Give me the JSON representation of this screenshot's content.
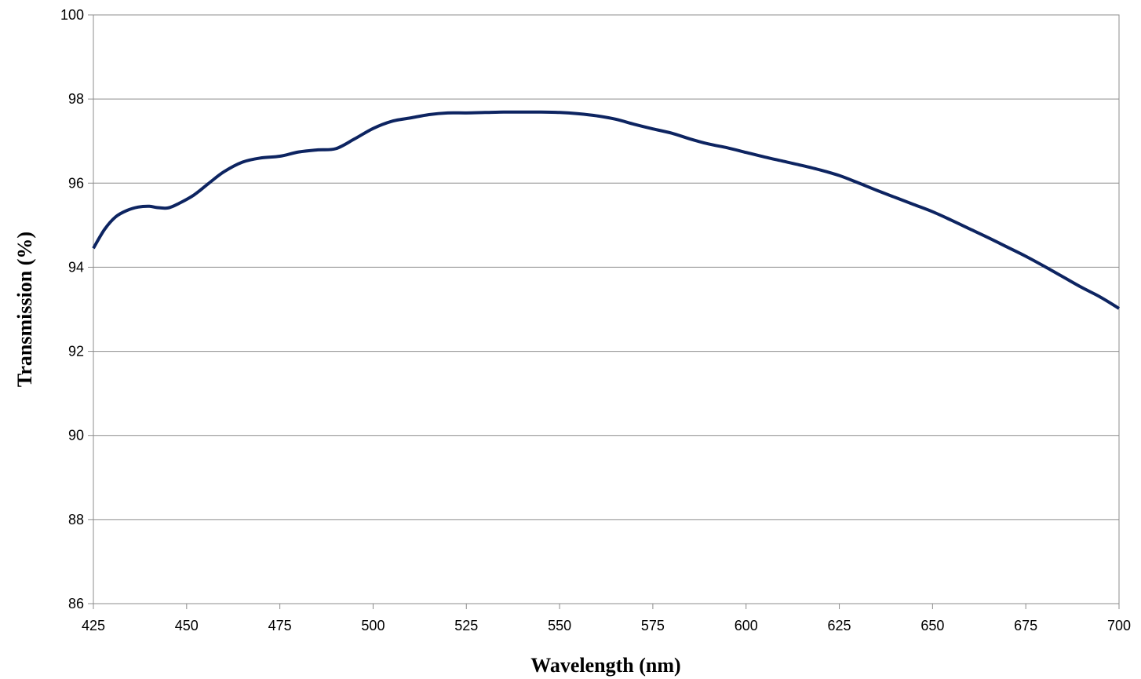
{
  "chart_data": {
    "type": "line",
    "title": "",
    "xlabel": "Wavelength (nm)",
    "ylabel": "Transmission (%)",
    "xlim": [
      425,
      700
    ],
    "ylim": [
      86,
      100
    ],
    "xticks": [
      425,
      450,
      475,
      500,
      525,
      550,
      575,
      600,
      625,
      650,
      675,
      700
    ],
    "yticks": [
      86,
      88,
      90,
      92,
      94,
      96,
      98,
      100
    ],
    "grid": {
      "horizontal": true,
      "vertical": false
    },
    "legend": "none",
    "series": [
      {
        "color": "#0d2461",
        "points": [
          [
            425,
            94.45
          ],
          [
            428,
            94.9
          ],
          [
            431,
            95.2
          ],
          [
            434,
            95.35
          ],
          [
            437,
            95.43
          ],
          [
            440,
            95.45
          ],
          [
            442,
            95.42
          ],
          [
            445,
            95.41
          ],
          [
            448,
            95.52
          ],
          [
            452,
            95.72
          ],
          [
            456,
            96.0
          ],
          [
            460,
            96.27
          ],
          [
            465,
            96.5
          ],
          [
            470,
            96.6
          ],
          [
            475,
            96.64
          ],
          [
            480,
            96.74
          ],
          [
            485,
            96.79
          ],
          [
            490,
            96.82
          ],
          [
            495,
            97.05
          ],
          [
            500,
            97.3
          ],
          [
            505,
            97.47
          ],
          [
            510,
            97.55
          ],
          [
            515,
            97.63
          ],
          [
            520,
            97.67
          ],
          [
            525,
            97.67
          ],
          [
            530,
            97.68
          ],
          [
            535,
            97.69
          ],
          [
            540,
            97.69
          ],
          [
            545,
            97.69
          ],
          [
            550,
            97.68
          ],
          [
            555,
            97.65
          ],
          [
            560,
            97.6
          ],
          [
            565,
            97.52
          ],
          [
            570,
            97.4
          ],
          [
            575,
            97.29
          ],
          [
            580,
            97.19
          ],
          [
            585,
            97.05
          ],
          [
            590,
            96.93
          ],
          [
            595,
            96.84
          ],
          [
            600,
            96.73
          ],
          [
            605,
            96.62
          ],
          [
            610,
            96.52
          ],
          [
            615,
            96.42
          ],
          [
            620,
            96.31
          ],
          [
            625,
            96.18
          ],
          [
            630,
            96.01
          ],
          [
            635,
            95.83
          ],
          [
            640,
            95.66
          ],
          [
            645,
            95.49
          ],
          [
            650,
            95.32
          ],
          [
            655,
            95.12
          ],
          [
            660,
            94.91
          ],
          [
            665,
            94.7
          ],
          [
            670,
            94.48
          ],
          [
            675,
            94.26
          ],
          [
            680,
            94.02
          ],
          [
            685,
            93.77
          ],
          [
            690,
            93.52
          ],
          [
            695,
            93.29
          ],
          [
            700,
            93.02
          ]
        ]
      }
    ]
  }
}
